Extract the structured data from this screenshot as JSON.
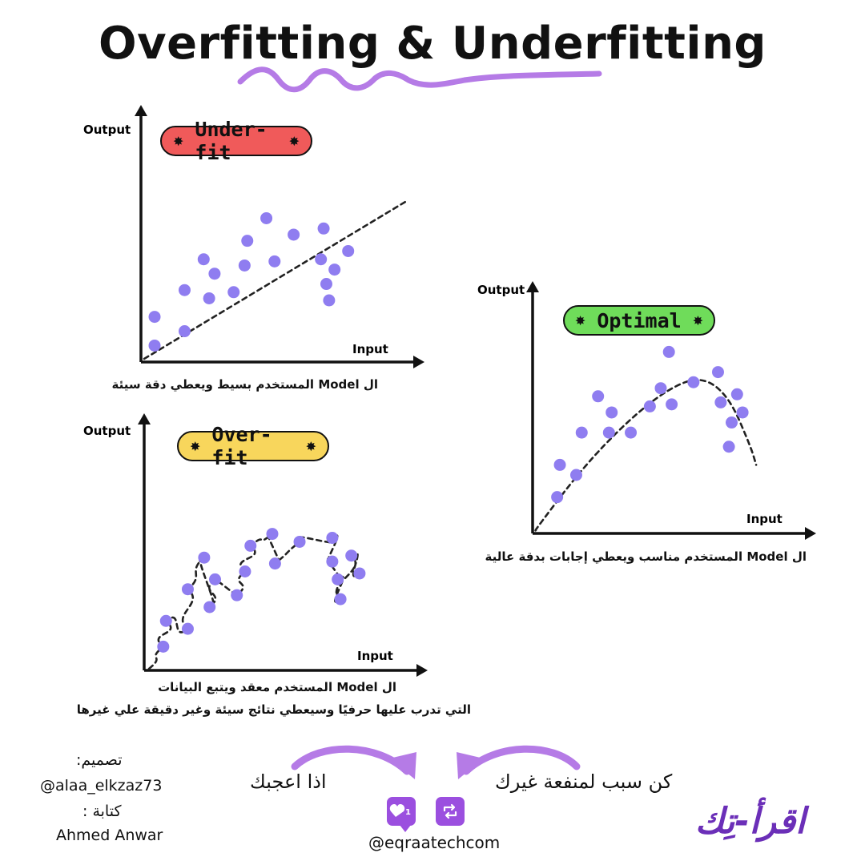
{
  "title": "Overfitting & Underfitting",
  "colors": {
    "accent": "#b57be6",
    "point": "#8f7df0",
    "underfit": "#f05a5a",
    "optimal": "#6fdc5a",
    "overfit": "#f8d65c",
    "brand": "#6b2fb8"
  },
  "chart_data": [
    {
      "type": "scatter",
      "title": "Under-fit",
      "xlabel": "Input",
      "ylabel": "Output",
      "xlim": [
        0,
        10
      ],
      "ylim": [
        0,
        10
      ],
      "points": [
        [
          0.5,
          0.8
        ],
        [
          0.5,
          2.2
        ],
        [
          1.6,
          1.5
        ],
        [
          1.6,
          3.5
        ],
        [
          2.3,
          5.0
        ],
        [
          2.5,
          3.1
        ],
        [
          2.7,
          4.3
        ],
        [
          3.4,
          3.4
        ],
        [
          3.8,
          4.7
        ],
        [
          3.9,
          5.9
        ],
        [
          4.6,
          7.0
        ],
        [
          4.9,
          4.9
        ],
        [
          5.6,
          6.2
        ],
        [
          6.7,
          6.5
        ],
        [
          6.6,
          5.0
        ],
        [
          6.8,
          3.8
        ],
        [
          6.9,
          3.0
        ],
        [
          7.6,
          5.4
        ],
        [
          7.1,
          4.5
        ]
      ],
      "fit": {
        "kind": "linear",
        "points": [
          [
            0,
            0
          ],
          [
            9.7,
            7.8
          ]
        ]
      },
      "caption": "ال Model المستخدم بسيط ويعطي دقة سيئة"
    },
    {
      "type": "scatter",
      "title": "Optimal",
      "xlabel": "Input",
      "ylabel": "Output",
      "xlim": [
        0,
        10
      ],
      "ylim": [
        0,
        10
      ],
      "points": [
        [
          0.9,
          1.8
        ],
        [
          1.0,
          3.4
        ],
        [
          1.6,
          2.9
        ],
        [
          1.8,
          5.0
        ],
        [
          2.4,
          6.8
        ],
        [
          2.8,
          5.0
        ],
        [
          2.9,
          6.0
        ],
        [
          3.6,
          5.0
        ],
        [
          4.3,
          6.3
        ],
        [
          4.7,
          7.2
        ],
        [
          5.0,
          9.0
        ],
        [
          5.1,
          6.4
        ],
        [
          5.9,
          7.5
        ],
        [
          6.8,
          8.0
        ],
        [
          6.9,
          6.5
        ],
        [
          7.2,
          4.3
        ],
        [
          7.3,
          5.5
        ],
        [
          7.5,
          6.9
        ],
        [
          7.7,
          6.0
        ]
      ],
      "fit": {
        "kind": "curve",
        "points": [
          [
            0,
            0
          ],
          [
            1.8,
            3.2
          ],
          [
            3.5,
            5.6
          ],
          [
            5,
            7.2
          ],
          [
            6.2,
            7.8
          ],
          [
            7.2,
            6.8
          ],
          [
            8,
            4.3
          ],
          [
            8.2,
            3.4
          ]
        ]
      },
      "caption": "ال Model المستخدم مناسب ويعطي إجابات بدقة عالية"
    },
    {
      "type": "scatter",
      "title": "Over-fit",
      "xlabel": "Input",
      "ylabel": "Output",
      "xlim": [
        0,
        10
      ],
      "ylim": [
        0,
        10
      ],
      "points": [
        [
          0.7,
          1.2
        ],
        [
          0.8,
          2.5
        ],
        [
          1.6,
          2.1
        ],
        [
          1.6,
          4.1
        ],
        [
          2.2,
          5.7
        ],
        [
          2.4,
          3.2
        ],
        [
          2.6,
          4.6
        ],
        [
          3.4,
          3.8
        ],
        [
          3.7,
          5.0
        ],
        [
          3.9,
          6.3
        ],
        [
          4.7,
          6.9
        ],
        [
          4.8,
          5.4
        ],
        [
          5.7,
          6.5
        ],
        [
          6.9,
          6.7
        ],
        [
          6.9,
          5.5
        ],
        [
          7.1,
          4.6
        ],
        [
          7.2,
          3.6
        ],
        [
          7.6,
          5.8
        ],
        [
          7.9,
          4.9
        ]
      ],
      "fit": {
        "kind": "wiggle"
      },
      "caption_lines": [
        "ال Model المستخدم معقد ويتبع البيانات",
        "التي تدرب عليها حرفيًا  وسيعطي نتائج سيئة  وغير دقيقة علي غيرها"
      ]
    }
  ],
  "credits": {
    "design_label": "تصميم:",
    "design_handle": "@alaa_elkzaz73",
    "writing_label": "كتابة :",
    "writing_name": "Ahmed Anwar"
  },
  "cta": {
    "left_text": "اذا اعجبك",
    "right_text": "كن سبب لمنفعة غيرك",
    "like_count": "1",
    "handle": "@eqraatechcom"
  },
  "brand": "اقرأ-تِك",
  "icons": {
    "like": "heart-icon",
    "share": "repost-icon",
    "pill_star": "asterisk-icon"
  }
}
